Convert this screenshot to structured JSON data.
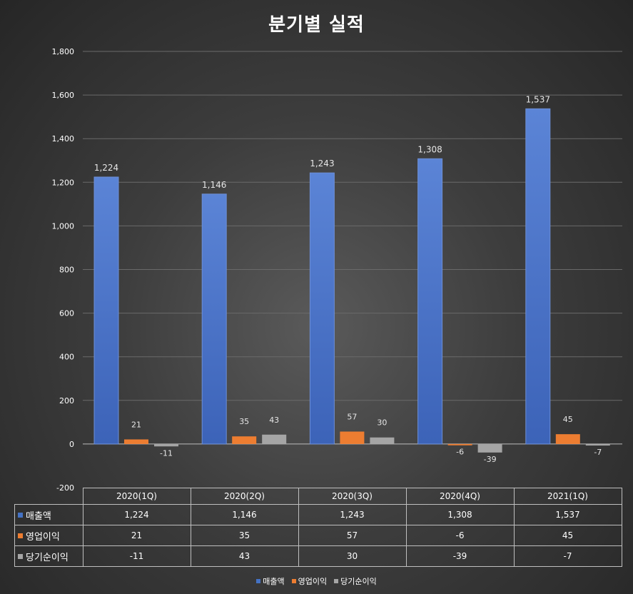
{
  "chart_data": {
    "type": "bar",
    "title": "분기별 실적",
    "categories": [
      "2020(1Q)",
      "2020(2Q)",
      "2020(3Q)",
      "2020(4Q)",
      "2021(1Q)"
    ],
    "series": [
      {
        "name": "매출액",
        "color": "#4472c4",
        "values": [
          1224,
          1146,
          1243,
          1308,
          1537
        ],
        "labels": [
          "1,224",
          "1,146",
          "1,243",
          "1,308",
          "1,537"
        ]
      },
      {
        "name": "영업이익",
        "color": "#ed7d31",
        "values": [
          21,
          35,
          57,
          -6,
          45
        ],
        "labels": [
          "21",
          "35",
          "57",
          "-6",
          "45"
        ]
      },
      {
        "name": "당기순이익",
        "color": "#a5a5a5",
        "values": [
          -11,
          43,
          30,
          -39,
          -7
        ],
        "labels": [
          "-11",
          "43",
          "30",
          "-39",
          "-7"
        ]
      }
    ],
    "ylim": [
      -200,
      1800
    ],
    "yticks": [
      -200,
      0,
      200,
      400,
      600,
      800,
      1000,
      1200,
      1400,
      1600,
      1800
    ],
    "ytick_labels": [
      "-200",
      "0",
      "200",
      "400",
      "600",
      "800",
      "1,000",
      "1,200",
      "1,400",
      "1,600",
      "1,800"
    ],
    "grid": true,
    "legend_position": "bottom",
    "data_table": true
  }
}
